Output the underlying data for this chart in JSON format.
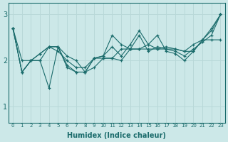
{
  "xlabel": "Humidex (Indice chaleur)",
  "bg_color": "#cce8e8",
  "plot_bg_color": "#cce8e8",
  "line_color": "#1a6b6b",
  "grid_color": "#b8d8d8",
  "x_ticks": [
    0,
    1,
    2,
    3,
    4,
    5,
    6,
    7,
    8,
    9,
    10,
    11,
    12,
    13,
    14,
    15,
    16,
    17,
    18,
    19,
    20,
    21,
    22,
    23
  ],
  "y_ticks": [
    1,
    2,
    3
  ],
  "ylim": [
    0.65,
    3.25
  ],
  "xlim": [
    -0.5,
    23.5
  ],
  "series": [
    [
      2.7,
      1.75,
      2.0,
      2.0,
      2.3,
      2.2,
      2.0,
      1.85,
      1.85,
      2.05,
      2.05,
      2.05,
      2.25,
      2.25,
      2.25,
      2.35,
      2.25,
      2.3,
      2.25,
      2.2,
      2.35,
      2.45,
      2.45,
      2.45
    ],
    [
      2.7,
      2.0,
      2.0,
      2.15,
      2.3,
      2.3,
      2.1,
      2.0,
      1.75,
      2.05,
      2.1,
      2.3,
      2.1,
      2.35,
      2.65,
      2.35,
      2.55,
      2.2,
      2.15,
      2.0,
      2.2,
      2.45,
      2.7,
      3.0
    ],
    [
      2.7,
      1.75,
      2.0,
      2.15,
      2.3,
      2.3,
      1.9,
      1.75,
      1.75,
      2.05,
      2.1,
      2.55,
      2.35,
      2.25,
      2.55,
      2.2,
      2.3,
      2.25,
      2.2,
      2.1,
      2.25,
      2.4,
      2.55,
      3.0
    ],
    [
      2.7,
      1.75,
      2.0,
      2.0,
      1.4,
      2.3,
      1.85,
      1.75,
      1.75,
      1.85,
      2.05,
      2.05,
      2.0,
      2.25,
      2.25,
      2.25,
      2.25,
      2.25,
      2.25,
      2.2,
      2.2,
      2.45,
      2.65,
      3.0
    ]
  ]
}
